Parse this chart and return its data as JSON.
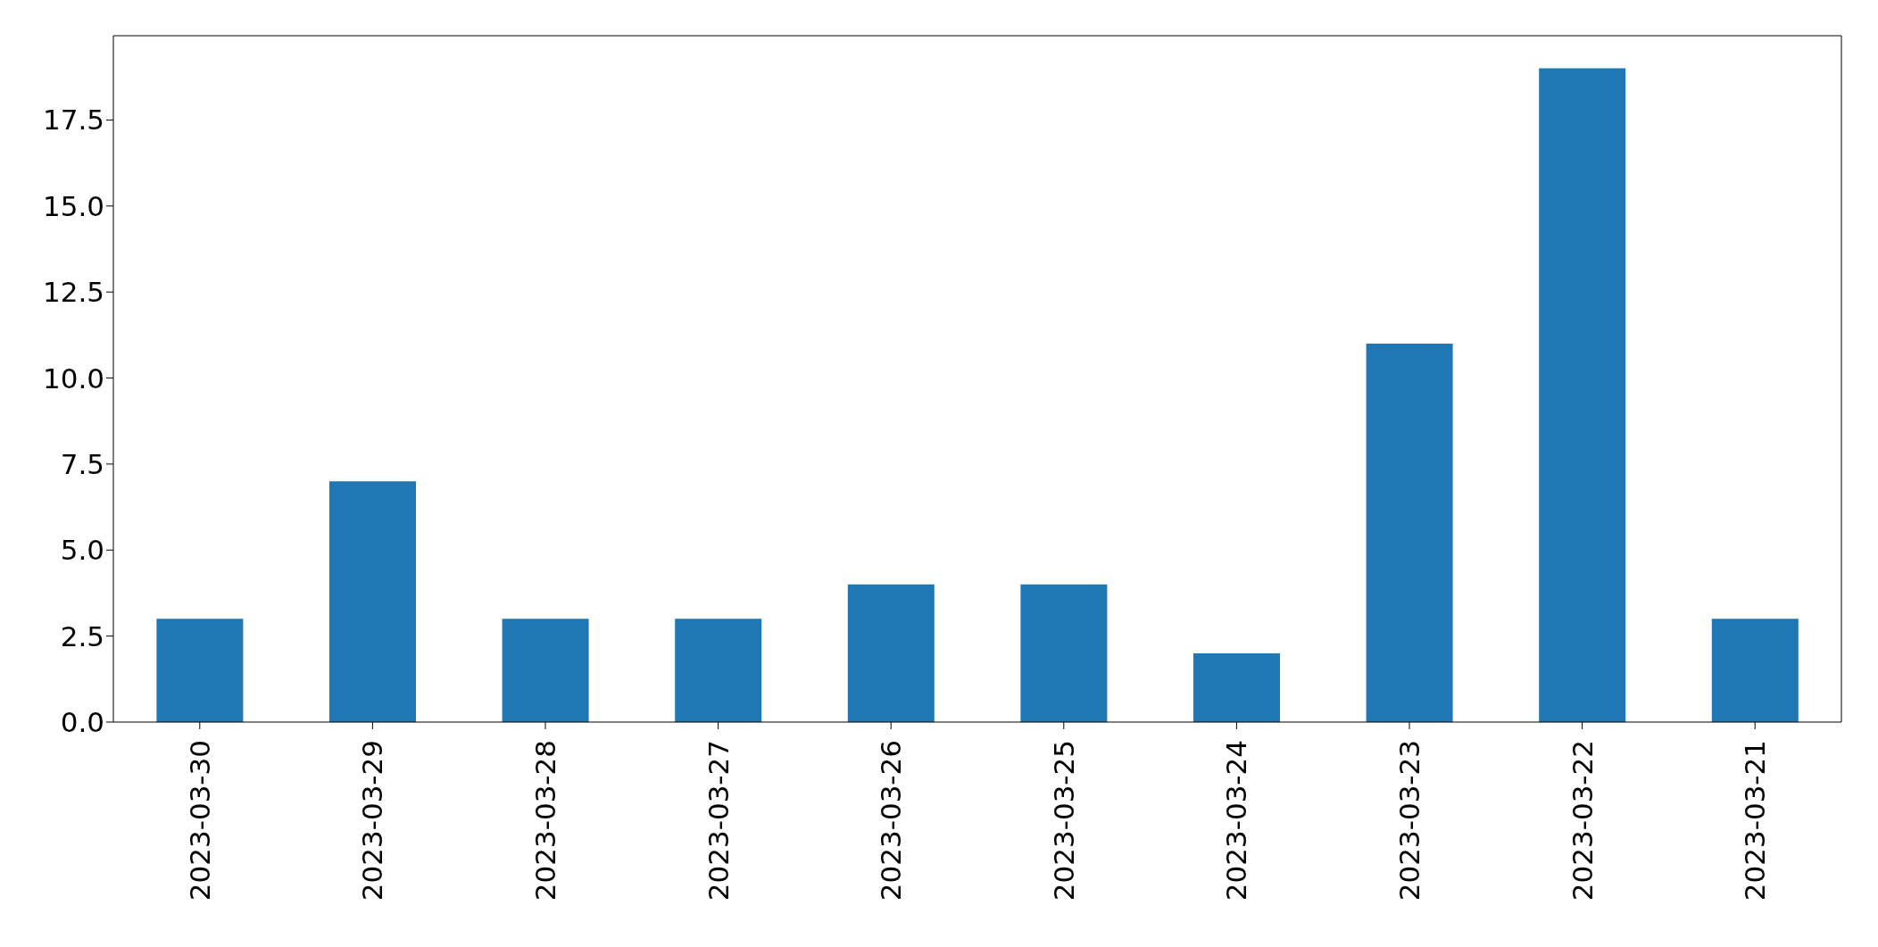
{
  "chart_data": {
    "type": "bar",
    "categories": [
      "2023-03-30",
      "2023-03-29",
      "2023-03-28",
      "2023-03-27",
      "2023-03-26",
      "2023-03-25",
      "2023-03-24",
      "2023-03-23",
      "2023-03-22",
      "2023-03-21"
    ],
    "values": [
      3,
      7,
      3,
      3,
      4,
      4,
      2,
      11,
      19,
      3
    ],
    "color": "#1f77b4",
    "ylim": [
      0,
      19.95
    ],
    "yticks": [
      {
        "value": 0,
        "label": "0.0"
      },
      2.5,
      {
        "value": 5,
        "label": "5.0"
      },
      7.5,
      {
        "value": 10,
        "label": "10.0"
      },
      12.5,
      {
        "value": 15,
        "label": "15.0"
      },
      17.5
    ],
    "grid": false,
    "legend": false
  }
}
